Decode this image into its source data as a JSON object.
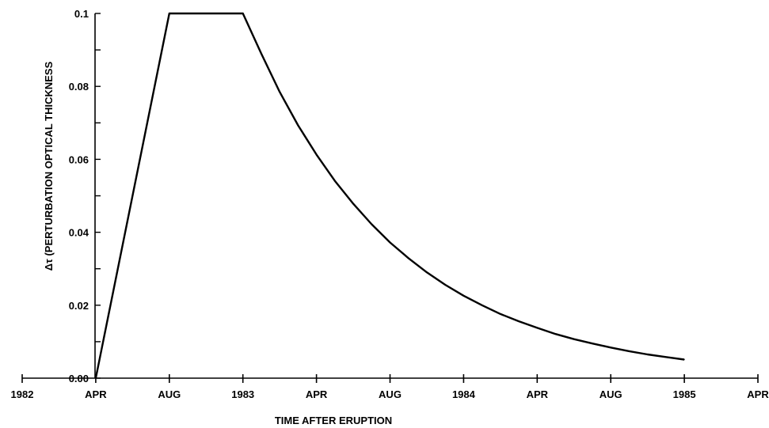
{
  "chart_data": {
    "type": "line",
    "title": "",
    "xlabel": "TIME AFTER ERUPTION",
    "ylabel": "Δτ (PERTURBATION OPTICAL THICKNESS",
    "x_ticks": [
      "1982",
      "APR",
      "AUG",
      "1983",
      "APR",
      "AUG",
      "1984",
      "APR",
      "AUG",
      "1985",
      "APR"
    ],
    "x_tick_months": [
      0,
      4,
      8,
      12,
      16,
      20,
      24,
      28,
      32,
      36,
      40
    ],
    "y_ticks": [
      "0.00",
      "0.02",
      "0.04",
      "0.06",
      "0.08",
      "0.1"
    ],
    "y_tick_values": [
      0,
      0.02,
      0.04,
      0.06,
      0.08,
      0.1
    ],
    "ylim": [
      0,
      0.1
    ],
    "xlim_months": [
      0,
      40
    ],
    "grid": false,
    "series": [
      {
        "x_months": [
          4,
          8,
          12,
          13,
          14,
          15,
          16,
          17,
          18,
          19,
          20,
          21,
          22,
          23,
          24,
          25,
          26,
          27,
          28,
          29,
          30,
          31,
          32,
          33,
          34,
          35,
          36
        ],
        "values": [
          0.0,
          0.1,
          0.1,
          0.089,
          0.0785,
          0.0693,
          0.0613,
          0.0541,
          0.0478,
          0.0422,
          0.0372,
          0.0329,
          0.029,
          0.0256,
          0.0226,
          0.02,
          0.0176,
          0.0156,
          0.0138,
          0.0121,
          0.0107,
          0.0095,
          0.0084,
          0.0074,
          0.0065,
          0.0058,
          0.0051
        ]
      }
    ]
  }
}
